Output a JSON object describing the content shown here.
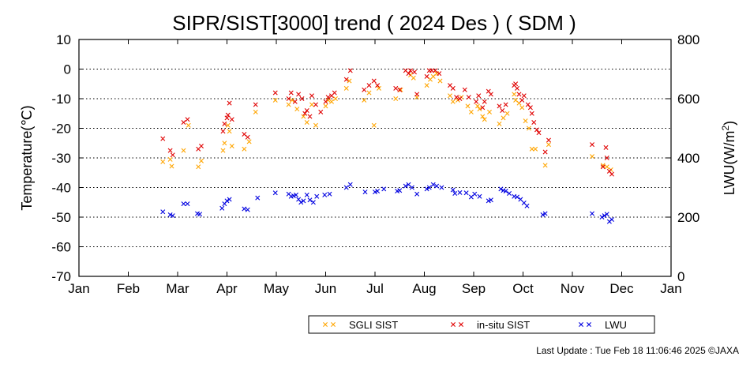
{
  "footer": "Last Update : Tue Feb 18 11:06:46 2025  ©JAXA",
  "chart_data": {
    "type": "scatter",
    "title": "SIPR/SIST[3000] trend ( 2024 Des ) ( SDM )",
    "ylabel": "Temperature(℃)",
    "y2label_main": "LWU(W/m",
    "y2label_sup": "2",
    "y2label_end": ")",
    "ylim": [
      -70,
      10
    ],
    "y2lim": [
      0,
      800
    ],
    "yticks": [
      "10",
      "0",
      "-10",
      "-20",
      "-30",
      "-40",
      "-50",
      "-60",
      "-70"
    ],
    "y2ticks": [
      "800",
      "600",
      "400",
      "200",
      "0"
    ],
    "xticks": [
      "Jan",
      "Feb",
      "Mar",
      "Apr",
      "May",
      "Jun",
      "Jul",
      "Aug",
      "Sep",
      "Oct",
      "Nov",
      "Dec",
      "Jan"
    ],
    "grid": "horizontal-dotted",
    "legend_position": "bottom-center",
    "series": [
      {
        "name": "SGLI SIST",
        "color": "#ffa500",
        "axis": "left",
        "points": [
          [
            1.7,
            -31.3
          ],
          [
            1.85,
            -30.5
          ],
          [
            1.88,
            -32.8
          ],
          [
            2.12,
            -27.5
          ],
          [
            2.22,
            -19.0
          ],
          [
            2.42,
            -33.0
          ],
          [
            2.48,
            -31.0
          ],
          [
            2.92,
            -27.5
          ],
          [
            2.95,
            -25.0
          ],
          [
            3.02,
            -19.0
          ],
          [
            3.05,
            -21.0
          ],
          [
            3.1,
            -26.0
          ],
          [
            3.35,
            -27.0
          ],
          [
            3.45,
            -24.5
          ],
          [
            3.58,
            -14.5
          ],
          [
            3.98,
            -10.5
          ],
          [
            4.25,
            -12.0
          ],
          [
            4.32,
            -10.5
          ],
          [
            4.42,
            -13.5
          ],
          [
            4.55,
            -16.0
          ],
          [
            4.62,
            -18.0
          ],
          [
            4.72,
            -12.0
          ],
          [
            4.8,
            -19.0
          ],
          [
            5.0,
            -12.5
          ],
          [
            5.05,
            -10.5
          ],
          [
            5.12,
            -11.0
          ],
          [
            5.2,
            -10.0
          ],
          [
            5.42,
            -6.5
          ],
          [
            5.48,
            -4.0
          ],
          [
            5.78,
            -10.5
          ],
          [
            5.88,
            -8.0
          ],
          [
            5.98,
            -19.0
          ],
          [
            6.08,
            -6.5
          ],
          [
            6.42,
            -10.0
          ],
          [
            6.52,
            -7.0
          ],
          [
            6.72,
            -2.0
          ],
          [
            6.78,
            -3.0
          ],
          [
            6.85,
            -9.5
          ],
          [
            7.05,
            -5.5
          ],
          [
            7.12,
            -3.5
          ],
          [
            7.18,
            -2.5
          ],
          [
            7.25,
            -1.5
          ],
          [
            7.32,
            -4.0
          ],
          [
            7.52,
            -9.0
          ],
          [
            7.58,
            -11.0
          ],
          [
            7.68,
            -10.5
          ],
          [
            7.75,
            -9.5
          ],
          [
            7.88,
            -12.5
          ],
          [
            7.95,
            -14.5
          ],
          [
            8.08,
            -12.5
          ],
          [
            8.12,
            -13.5
          ],
          [
            8.18,
            -16.0
          ],
          [
            8.22,
            -17.0
          ],
          [
            8.32,
            -14.5
          ],
          [
            8.52,
            -18.5
          ],
          [
            8.6,
            -16.5
          ],
          [
            8.68,
            -15.0
          ],
          [
            8.82,
            -8.5
          ],
          [
            8.85,
            -10.5
          ],
          [
            8.92,
            -11.5
          ],
          [
            8.98,
            -13.0
          ],
          [
            9.05,
            -17.5
          ],
          [
            9.12,
            -20.0
          ],
          [
            9.18,
            -27.0
          ],
          [
            9.25,
            -27.0
          ],
          [
            9.45,
            -32.5
          ],
          [
            9.52,
            -25.5
          ],
          [
            10.4,
            -29.5
          ],
          [
            10.62,
            -32.5
          ],
          [
            10.7,
            -33.0
          ],
          [
            10.78,
            -34.0
          ]
        ]
      },
      {
        "name": "in-situ SIST",
        "color": "#e00000",
        "axis": "left",
        "points": [
          [
            1.7,
            -23.5
          ],
          [
            1.85,
            -27.5
          ],
          [
            1.9,
            -29.0
          ],
          [
            2.12,
            -18.0
          ],
          [
            2.2,
            -17.0
          ],
          [
            2.42,
            -27.0
          ],
          [
            2.48,
            -26.0
          ],
          [
            2.92,
            -21.0
          ],
          [
            2.95,
            -18.5
          ],
          [
            3.0,
            -16.5
          ],
          [
            3.02,
            -15.5
          ],
          [
            3.05,
            -11.5
          ],
          [
            3.1,
            -17.0
          ],
          [
            3.35,
            -22.0
          ],
          [
            3.42,
            -23.0
          ],
          [
            3.58,
            -12.0
          ],
          [
            3.98,
            -8.0
          ],
          [
            4.25,
            -10.0
          ],
          [
            4.3,
            -8.0
          ],
          [
            4.38,
            -11.0
          ],
          [
            4.45,
            -8.5
          ],
          [
            4.52,
            -10.0
          ],
          [
            4.58,
            -15.0
          ],
          [
            4.62,
            -14.0
          ],
          [
            4.68,
            -16.0
          ],
          [
            4.72,
            -9.0
          ],
          [
            4.8,
            -12.0
          ],
          [
            4.9,
            -14.5
          ],
          [
            5.0,
            -11.0
          ],
          [
            5.05,
            -9.5
          ],
          [
            5.12,
            -9.0
          ],
          [
            5.18,
            -8.0
          ],
          [
            5.42,
            -3.5
          ],
          [
            5.5,
            -0.5
          ],
          [
            5.78,
            -7.0
          ],
          [
            5.88,
            -5.5
          ],
          [
            5.98,
            -4.0
          ],
          [
            6.05,
            -5.5
          ],
          [
            6.42,
            -6.5
          ],
          [
            6.5,
            -7.0
          ],
          [
            6.62,
            -0.5
          ],
          [
            6.68,
            -1.5
          ],
          [
            6.72,
            -0.5
          ],
          [
            6.8,
            -1.0
          ],
          [
            6.85,
            -8.5
          ],
          [
            7.05,
            -2.5
          ],
          [
            7.1,
            -0.5
          ],
          [
            7.15,
            -0.5
          ],
          [
            7.22,
            -0.5
          ],
          [
            7.3,
            -1.5
          ],
          [
            7.52,
            -5.5
          ],
          [
            7.58,
            -6.5
          ],
          [
            7.65,
            -9.5
          ],
          [
            7.72,
            -10.0
          ],
          [
            7.82,
            -7.0
          ],
          [
            7.9,
            -9.5
          ],
          [
            8.05,
            -11.0
          ],
          [
            8.1,
            -9.0
          ],
          [
            8.18,
            -13.0
          ],
          [
            8.22,
            -11.0
          ],
          [
            8.3,
            -7.5
          ],
          [
            8.35,
            -8.5
          ],
          [
            8.52,
            -12.5
          ],
          [
            8.58,
            -14.0
          ],
          [
            8.65,
            -12.0
          ],
          [
            8.82,
            -5.5
          ],
          [
            8.85,
            -5.0
          ],
          [
            8.88,
            -6.5
          ],
          [
            8.92,
            -8.5
          ],
          [
            8.98,
            -10.5
          ],
          [
            9.02,
            -9.0
          ],
          [
            9.1,
            -12.0
          ],
          [
            9.15,
            -13.0
          ],
          [
            9.18,
            -15.0
          ],
          [
            9.22,
            -18.0
          ],
          [
            9.28,
            -20.5
          ],
          [
            9.32,
            -21.5
          ],
          [
            9.45,
            -28.0
          ],
          [
            9.52,
            -24.0
          ],
          [
            10.4,
            -25.5
          ],
          [
            10.62,
            -33.0
          ],
          [
            10.68,
            -26.5
          ],
          [
            10.7,
            -30.0
          ],
          [
            10.75,
            -34.5
          ],
          [
            10.8,
            -35.5
          ]
        ]
      },
      {
        "name": "LWU",
        "color": "#0000e0",
        "axis": "right",
        "points": [
          [
            1.7,
            218
          ],
          [
            1.85,
            208
          ],
          [
            1.9,
            205
          ],
          [
            2.12,
            245
          ],
          [
            2.2,
            245
          ],
          [
            2.4,
            212
          ],
          [
            2.45,
            210
          ],
          [
            2.9,
            230
          ],
          [
            2.95,
            245
          ],
          [
            3.0,
            255
          ],
          [
            3.05,
            260
          ],
          [
            3.35,
            228
          ],
          [
            3.42,
            225
          ],
          [
            3.62,
            265
          ],
          [
            3.98,
            282
          ],
          [
            4.25,
            278
          ],
          [
            4.3,
            270
          ],
          [
            4.35,
            272
          ],
          [
            4.4,
            275
          ],
          [
            4.45,
            260
          ],
          [
            4.5,
            250
          ],
          [
            4.55,
            255
          ],
          [
            4.62,
            275
          ],
          [
            4.68,
            258
          ],
          [
            4.75,
            250
          ],
          [
            4.82,
            270
          ],
          [
            4.98,
            275
          ],
          [
            5.08,
            278
          ],
          [
            5.42,
            300
          ],
          [
            5.5,
            310
          ],
          [
            5.8,
            285
          ],
          [
            6.0,
            285
          ],
          [
            6.05,
            288
          ],
          [
            6.18,
            295
          ],
          [
            6.45,
            288
          ],
          [
            6.5,
            290
          ],
          [
            6.62,
            305
          ],
          [
            6.68,
            310
          ],
          [
            6.75,
            300
          ],
          [
            6.85,
            278
          ],
          [
            7.05,
            295
          ],
          [
            7.1,
            300
          ],
          [
            7.18,
            310
          ],
          [
            7.25,
            305
          ],
          [
            7.35,
            300
          ],
          [
            7.58,
            292
          ],
          [
            7.62,
            280
          ],
          [
            7.72,
            283
          ],
          [
            7.85,
            282
          ],
          [
            7.95,
            268
          ],
          [
            8.02,
            278
          ],
          [
            8.12,
            270
          ],
          [
            8.3,
            255
          ],
          [
            8.35,
            258
          ],
          [
            8.55,
            295
          ],
          [
            8.6,
            290
          ],
          [
            8.65,
            288
          ],
          [
            8.72,
            280
          ],
          [
            8.82,
            270
          ],
          [
            8.88,
            268
          ],
          [
            8.95,
            260
          ],
          [
            9.02,
            248
          ],
          [
            9.08,
            238
          ],
          [
            9.4,
            208
          ],
          [
            9.45,
            212
          ],
          [
            10.4,
            212
          ],
          [
            10.6,
            200
          ],
          [
            10.65,
            205
          ],
          [
            10.7,
            210
          ],
          [
            10.75,
            185
          ],
          [
            10.8,
            192
          ]
        ]
      }
    ]
  }
}
